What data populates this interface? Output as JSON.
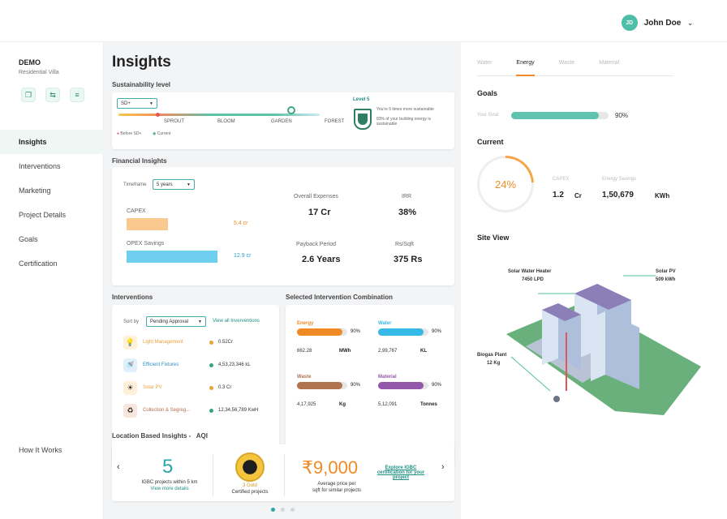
{
  "header": {
    "user_initials": "JD",
    "user_name": "John Doe"
  },
  "project": {
    "name": "DEMO",
    "type": "Residential Villa"
  },
  "sidebar": {
    "items": [
      {
        "label": "Insights"
      },
      {
        "label": "Interventions"
      },
      {
        "label": "Marketing"
      },
      {
        "label": "Project Details"
      },
      {
        "label": "Goals"
      },
      {
        "label": "Certification"
      }
    ],
    "how_it_works": "How It Works"
  },
  "main": {
    "title": "Insights",
    "sustainability": {
      "heading": "Sustainability level",
      "select_value": "SD+",
      "levels": [
        "SPROUT",
        "BLOOM",
        "GARDEN",
        "FOREST"
      ],
      "legend_before": "Before SD+",
      "legend_current": "Current",
      "badge_label": "Level 5",
      "note1": "You're 5 times more sustainable",
      "note2": "83% of your building energy is sustainable"
    },
    "financial": {
      "heading": "Financial Insights",
      "timeframe_label": "Timeframe",
      "timeframe_value": "5 years",
      "capex_label": "CAPEX",
      "capex_value": "5.4 cr",
      "opex_label": "OPEX Savings",
      "opex_value": "12.9 cr",
      "overall_label": "Overall Expenses",
      "overall_value": "17 Cr",
      "irr_label": "IRR",
      "irr_value": "38%",
      "payback_label": "Payback Period",
      "payback_value": "2.6 Years",
      "rs_label": "Rs/Sqft",
      "rs_value": "375 Rs"
    },
    "interventions": {
      "heading": "Interventions",
      "sort_label": "Sort by",
      "sort_value": "Pending Approval",
      "view_all": "View all Inverventions",
      "rows": [
        {
          "name": "Light Management",
          "value": "0.52Cr",
          "name_color": "#e8a33a",
          "dot": "#e8a33a",
          "bg": "#fff1d9",
          "icon": "💡"
        },
        {
          "name": "Efficient Fixtures",
          "value": "4,53,23,346 kL",
          "name_color": "#2a8fc2",
          "dot": "#3aa17e",
          "bg": "#dff0fb",
          "icon": "🚿"
        },
        {
          "name": "Solar PV",
          "value": "0.3 Cr",
          "name_color": "#e8a33a",
          "dot": "#e8a33a",
          "bg": "#fff1d9",
          "icon": "☀"
        },
        {
          "name": "Collection & Segreg...",
          "value": "12,34,56,789 KwH",
          "name_color": "#b36f4a",
          "dot": "#3aa17e",
          "bg": "#f7e6dc",
          "icon": "♻"
        }
      ]
    },
    "selected": {
      "heading": "Selected Intervention Combination",
      "items": [
        {
          "name": "Energy",
          "pct": "90%",
          "fill": 0.9,
          "color": "#f08a25",
          "value": "662.28",
          "unit": "MWh"
        },
        {
          "name": "Water",
          "pct": "90%",
          "fill": 0.9,
          "color": "#36b9e6",
          "value": "2,99,767",
          "unit": "KL"
        },
        {
          "name": "Waste",
          "pct": "90%",
          "fill": 0.9,
          "color": "#b0744e",
          "value": "4,17,925",
          "unit": "Kg"
        },
        {
          "name": "Material",
          "pct": "90%",
          "fill": 0.9,
          "color": "#9257a8",
          "value": "5,12,091",
          "unit": "Tonnes"
        }
      ]
    },
    "location": {
      "heading": "Location Based Insights -",
      "heading_suffix": "AQI",
      "count": "5",
      "count_desc": "IGBC projects within 5 km",
      "view_more": "View more details",
      "gold_count": "3 Gold",
      "gold_desc": "Certified projects",
      "price": "₹9,000",
      "price_desc1": "Average price per",
      "price_desc2": "sqft for similar projects",
      "explore1": "Explore IGBC",
      "explore2": "certification for your",
      "explore3": "project",
      "left_arrow": "‹",
      "right_arrow": "›"
    }
  },
  "right": {
    "tabs": [
      "Water",
      "Energy",
      "Waste",
      "Material"
    ],
    "goals_heading": "Goals",
    "your_goal_label": "Your Goal",
    "goal_pct": "90%",
    "goal_fill": 0.9,
    "current_heading": "Current",
    "current_pct": "24%",
    "current_fill": 0.24,
    "capex_label": "CAPEX",
    "capex_value": "1.2",
    "capex_unit": "Cr",
    "energy_label": "Energy Savings",
    "energy_value": "1,50,679",
    "energy_unit": "KWh",
    "site_heading": "Site View",
    "solar_water_heater": "Solar Water Heater",
    "solar_water_value": "7450 LPD",
    "solar_pv": "Solar PV",
    "solar_pv_value": "509 kWh",
    "biogas": "Biogas Plant",
    "biogas_value": "12 Kg"
  }
}
